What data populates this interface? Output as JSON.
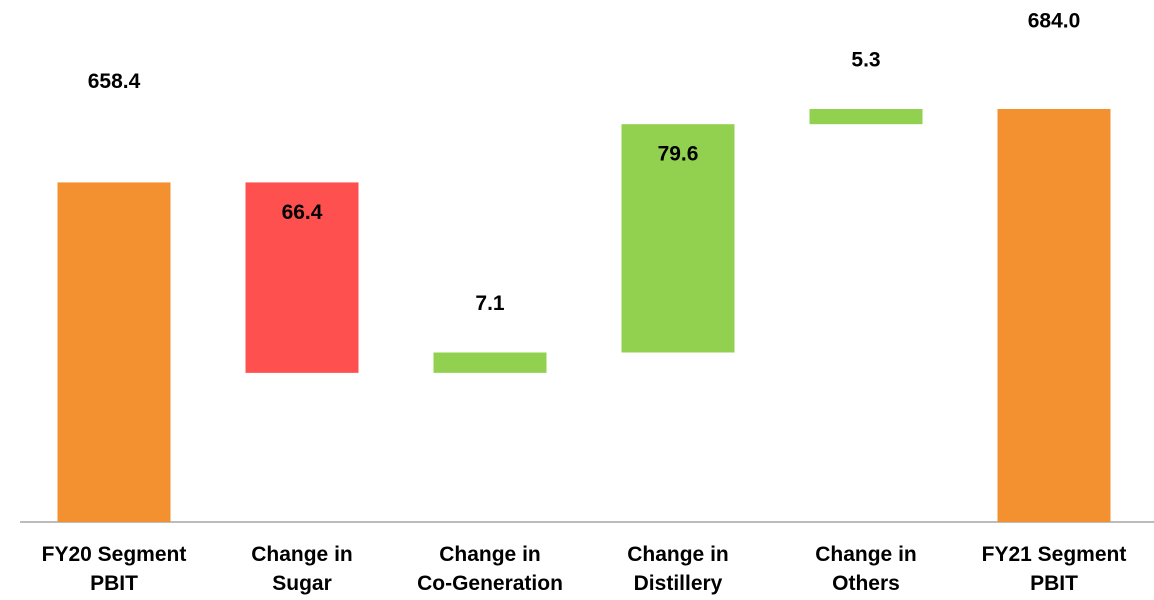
{
  "chart_data": {
    "type": "waterfall",
    "categories": [
      "FY20 Segment\nPBIT",
      "Change in\nSugar",
      "Change in\nCo-Generation",
      "Change in\nDistillery",
      "Change in\nOthers",
      "FY21 Segment\nPBIT"
    ],
    "values": [
      658.4,
      -66.4,
      7.1,
      79.6,
      5.3,
      684.0
    ],
    "value_labels": [
      "658.4",
      "66.4",
      "7.1",
      "79.6",
      "5.3",
      "684.0"
    ],
    "measure": [
      "total",
      "relative",
      "relative",
      "relative",
      "relative",
      "total"
    ],
    "colors": {
      "total": "#f39130",
      "increase": "#92d050",
      "decrease": "#ff5050"
    },
    "ylim": [
      540,
      722
    ]
  }
}
